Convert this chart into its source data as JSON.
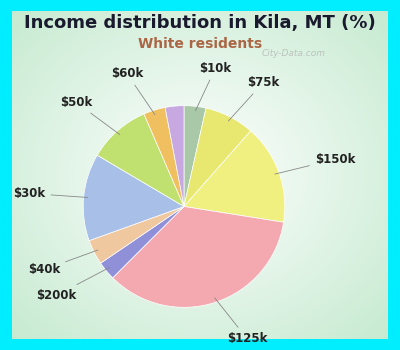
{
  "title": "Income distribution in Kila, MT (%)",
  "subtitle": "White residents",
  "title_color": "#1a1a2e",
  "subtitle_color": "#aa6644",
  "background_outer": "#00eeff",
  "watermark": "City-Data.com",
  "slices": [
    {
      "label": "$10k",
      "value": 3.5,
      "color": "#a8c8a8"
    },
    {
      "label": "$75k",
      "value": 8.0,
      "color": "#e8e870"
    },
    {
      "label": "$150k",
      "value": 16.0,
      "color": "#f0f080"
    },
    {
      "label": "$125k",
      "value": 35.0,
      "color": "#f4a8b0"
    },
    {
      "label": "$200k",
      "value": 3.0,
      "color": "#9090d8"
    },
    {
      "label": "$40k",
      "value": 4.0,
      "color": "#f0c8a0"
    },
    {
      "label": "$30k",
      "value": 14.0,
      "color": "#a8c0e8"
    },
    {
      "label": "$50k",
      "value": 10.0,
      "color": "#c0e070"
    },
    {
      "label": "$60k",
      "value": 3.5,
      "color": "#f0c060"
    },
    {
      "label": "",
      "value": 3.0,
      "color": "#c8a8e0"
    }
  ],
  "label_fontsize": 8.5,
  "title_fontsize": 13,
  "subtitle_fontsize": 10
}
